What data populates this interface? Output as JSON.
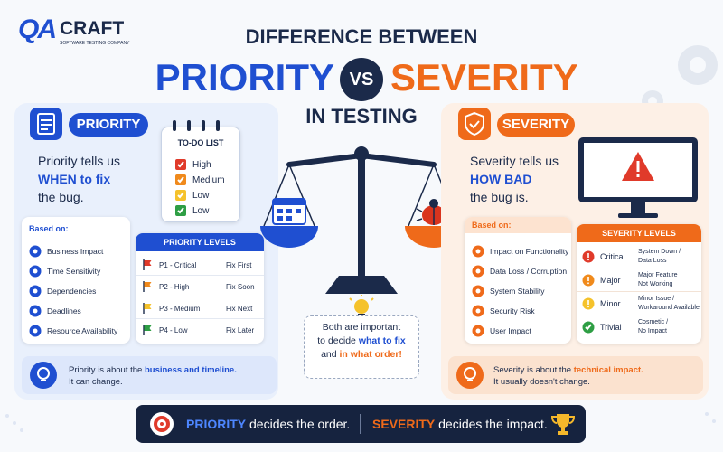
{
  "logo": {
    "mark": "QA",
    "name": "CRAFT",
    "tagline": "SOFTWARE TESTING COMPANY"
  },
  "header": {
    "line1": "DIFFERENCE BETWEEN",
    "left": "PRIORITY",
    "vs": "VS",
    "right": "SEVERITY",
    "line3": "IN TESTING"
  },
  "priority": {
    "label": "PRIORITY",
    "definition": [
      "Priority tells us",
      "WHEN to fix",
      "the bug."
    ],
    "todo": {
      "title": "TO-DO LIST",
      "items": [
        "High",
        "Medium",
        "Low",
        "Low"
      ]
    },
    "based_on": {
      "title": "Based on:",
      "items": [
        "Business Impact",
        "Time Sensitivity",
        "Dependencies",
        "Deadlines",
        "Resource Availability"
      ]
    },
    "levels": {
      "title": "PRIORITY LEVELS",
      "rows": [
        [
          "P1 - Critical",
          "Fix First"
        ],
        [
          "P2 - High",
          "Fix Soon"
        ],
        [
          "P3 - Medium",
          "Fix Next"
        ],
        [
          "P4 - Low",
          "Fix Later"
        ]
      ]
    },
    "note": {
      "text": "Priority is about the ",
      "highlight": "business and timeline.",
      "line2": "It can change."
    }
  },
  "severity": {
    "label": "SEVERITY",
    "definition": [
      "Severity tells us",
      "HOW BAD",
      "the bug is."
    ],
    "based_on": {
      "title": "Based on:",
      "items": [
        "Impact on Functionality",
        "Data Loss / Corruption",
        "System Stability",
        "Security Risk",
        "User Impact"
      ]
    },
    "levels": {
      "title": "SEVERITY LEVELS",
      "rows": [
        {
          "name": "Critical",
          "desc": [
            "System Down /",
            "Data Loss"
          ]
        },
        {
          "name": "Major",
          "desc": [
            "Major Feature",
            "Not Working"
          ]
        },
        {
          "name": "Minor",
          "desc": [
            "Minor Issue /",
            "Workaround Available"
          ]
        },
        {
          "name": "Trivial",
          "desc": [
            "Cosmetic /",
            "No Impact"
          ]
        }
      ]
    },
    "note": {
      "text": "Severity is about the ",
      "highlight": "technical impact.",
      "line2": "It usually doesn't change."
    }
  },
  "center": {
    "line1": "Both are important",
    "line2": "to decide ",
    "highlight1": "what to fix",
    "line3": "and ",
    "highlight2": "in what order!"
  },
  "footer": {
    "left_key": "PRIORITY",
    "left_text": " decides the order.",
    "right_key": "SEVERITY",
    "right_text": " decides the impact."
  }
}
